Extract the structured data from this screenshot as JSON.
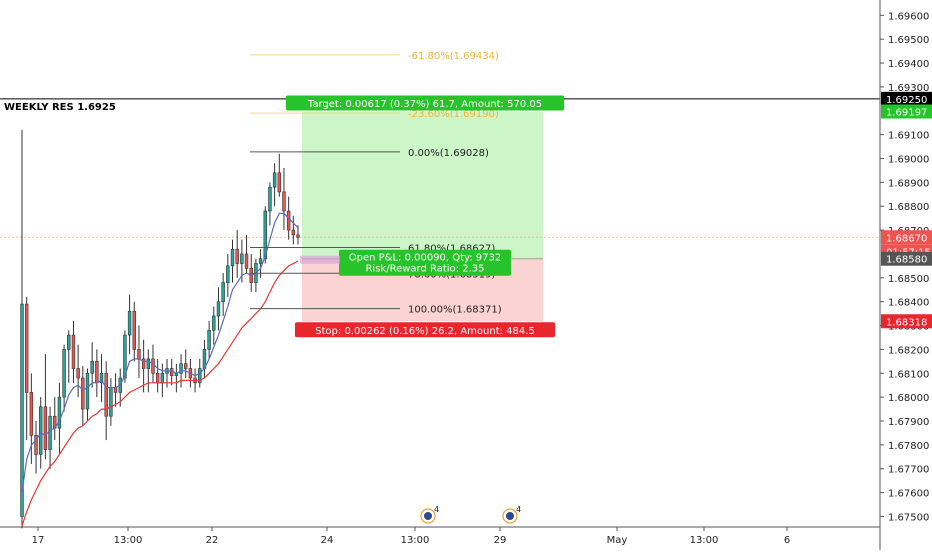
{
  "chart_data": {
    "type": "candlestick",
    "symbol_hint": "price chart with long position tool",
    "y_axis": {
      "ticks": [
        "1.69600",
        "1.69500",
        "1.69400",
        "1.69300",
        "1.69100",
        "1.69000",
        "1.68900",
        "1.68800",
        "1.68700",
        "1.68500",
        "1.68400",
        "1.68300",
        "1.68200",
        "1.68100",
        "1.68000",
        "1.67900",
        "1.67800",
        "1.67700",
        "1.67600",
        "1.67500"
      ],
      "ylim": [
        1.6746,
        1.6966
      ]
    },
    "x_axis": {
      "ticks": [
        "17",
        "13:00",
        "22",
        "24",
        "13:00",
        "29",
        "May",
        "13:00",
        "6"
      ]
    },
    "price_labels": {
      "resistance": "1.69250",
      "target": "1.69197",
      "last_price": "1.68670",
      "countdown": "01:57:15",
      "entry": "1.68580",
      "stop": "1.68318"
    },
    "horizontal_line": {
      "label": "WEEKLY RES 1.6925",
      "price": 1.6925
    },
    "fib_levels": [
      {
        "label": "-61.80%(1.69434)",
        "price": 1.69434
      },
      {
        "label": "-23.60%(1.69190)",
        "price": 1.6919
      },
      {
        "label": "0.00%(1.69028)",
        "price": 1.69028
      },
      {
        "label": "61.80%(1.68627)",
        "price": 1.68627
      },
      {
        "label": "78.60%(1.68519)",
        "price": 1.68519
      },
      {
        "label": "100.00%(1.68371)",
        "price": 1.68371
      }
    ],
    "position": {
      "target_text": "Target: 0.00617 (0.37%) 61.7, Amount: 570.05",
      "pnl_text": "Open P&L: 0.00090, Qty: 9732",
      "rr_text": "Risk/Reward Ratio: 2.35",
      "stop_text": "Stop: 0.00262 (0.16%) 26.2, Amount: 484.5",
      "entry": 1.6858,
      "target": 1.69197,
      "stop": 1.68318
    },
    "event_markers": [
      {
        "label": "4"
      },
      {
        "label": "4"
      }
    ],
    "candles": [
      [
        1.675,
        1.6912,
        1.6745,
        1.6839
      ],
      [
        1.6839,
        1.6842,
        1.6782,
        1.6802
      ],
      [
        1.6802,
        1.681,
        1.6772,
        1.6784
      ],
      [
        1.6784,
        1.679,
        1.6768,
        1.6776
      ],
      [
        1.6776,
        1.68,
        1.677,
        1.6796
      ],
      [
        1.6796,
        1.6818,
        1.6774,
        1.6778
      ],
      [
        1.6778,
        1.6796,
        1.677,
        1.6792
      ],
      [
        1.6792,
        1.68,
        1.6782,
        1.6787
      ],
      [
        1.6787,
        1.6806,
        1.6776,
        1.68
      ],
      [
        1.68,
        1.6822,
        1.6794,
        1.682
      ],
      [
        1.682,
        1.6828,
        1.6806,
        1.6826
      ],
      [
        1.6826,
        1.6832,
        1.6806,
        1.6812
      ],
      [
        1.6812,
        1.6822,
        1.68,
        1.6808
      ],
      [
        1.6808,
        1.6813,
        1.6788,
        1.6795
      ],
      [
        1.6795,
        1.6812,
        1.679,
        1.681
      ],
      [
        1.681,
        1.6823,
        1.6804,
        1.6815
      ],
      [
        1.6815,
        1.682,
        1.68,
        1.6806
      ],
      [
        1.6806,
        1.6818,
        1.6798,
        1.681
      ],
      [
        1.681,
        1.6815,
        1.6782,
        1.6792
      ],
      [
        1.6792,
        1.6808,
        1.6788,
        1.6804
      ],
      [
        1.6804,
        1.681,
        1.6796,
        1.6802
      ],
      [
        1.6802,
        1.6812,
        1.6796,
        1.6808
      ],
      [
        1.6808,
        1.6828,
        1.6806,
        1.6826
      ],
      [
        1.6826,
        1.6843,
        1.6818,
        1.6836
      ],
      [
        1.6836,
        1.684,
        1.6815,
        1.682
      ],
      [
        1.682,
        1.683,
        1.6808,
        1.6816
      ],
      [
        1.6816,
        1.6824,
        1.6802,
        1.6812
      ],
      [
        1.6812,
        1.682,
        1.6802,
        1.6816
      ],
      [
        1.6816,
        1.6822,
        1.6806,
        1.681
      ],
      [
        1.681,
        1.6816,
        1.6802,
        1.6806
      ],
      [
        1.6806,
        1.6814,
        1.68,
        1.681
      ],
      [
        1.681,
        1.6816,
        1.6804,
        1.6812
      ],
      [
        1.6812,
        1.6816,
        1.6805,
        1.6809
      ],
      [
        1.6809,
        1.6814,
        1.6802,
        1.681
      ],
      [
        1.681,
        1.6818,
        1.6804,
        1.6814
      ],
      [
        1.6814,
        1.682,
        1.6808,
        1.6812
      ],
      [
        1.6812,
        1.6816,
        1.6804,
        1.6808
      ],
      [
        1.6808,
        1.6812,
        1.6802,
        1.6806
      ],
      [
        1.6806,
        1.6816,
        1.6804,
        1.6812
      ],
      [
        1.6812,
        1.6824,
        1.6808,
        1.682
      ],
      [
        1.682,
        1.6832,
        1.6816,
        1.6828
      ],
      [
        1.6828,
        1.6838,
        1.6822,
        1.6834
      ],
      [
        1.6834,
        1.6846,
        1.6828,
        1.684
      ],
      [
        1.684,
        1.6852,
        1.6834,
        1.6848
      ],
      [
        1.6848,
        1.686,
        1.6842,
        1.6855
      ],
      [
        1.6855,
        1.6866,
        1.6848,
        1.6862
      ],
      [
        1.6862,
        1.687,
        1.685,
        1.6856
      ],
      [
        1.6856,
        1.6866,
        1.6848,
        1.686
      ],
      [
        1.686,
        1.6868,
        1.6852,
        1.6854
      ],
      [
        1.6854,
        1.686,
        1.6844,
        1.6848
      ],
      [
        1.6848,
        1.6858,
        1.6844,
        1.6856
      ],
      [
        1.6856,
        1.6862,
        1.685,
        1.6858
      ],
      [
        1.6858,
        1.688,
        1.6856,
        1.6878
      ],
      [
        1.6878,
        1.689,
        1.6872,
        1.6888
      ],
      [
        1.6888,
        1.6898,
        1.688,
        1.6894
      ],
      [
        1.6894,
        1.6902,
        1.6884,
        1.6886
      ],
      [
        1.6886,
        1.6896,
        1.687,
        1.6878
      ],
      [
        1.6878,
        1.6884,
        1.6866,
        1.687
      ],
      [
        1.687,
        1.6876,
        1.6864,
        1.6868
      ],
      [
        1.6868,
        1.6872,
        1.6864,
        1.6867
      ]
    ],
    "ma_fast": [
      1.676,
      1.6774,
      1.678,
      1.6782,
      1.6785,
      1.6784,
      1.6786,
      1.6787,
      1.679,
      1.6795,
      1.6801,
      1.6804,
      1.6805,
      1.6803,
      1.6804,
      1.6806,
      1.6806,
      1.6807,
      1.6804,
      1.6804,
      1.6804,
      1.6805,
      1.6809,
      1.6815,
      1.6816,
      1.6816,
      1.6815,
      1.6815,
      1.6814,
      1.6812,
      1.6811,
      1.6811,
      1.6811,
      1.681,
      1.6811,
      1.6811,
      1.681,
      1.6809,
      1.681,
      1.6812,
      1.6816,
      1.6821,
      1.6826,
      1.6832,
      1.6838,
      1.6845,
      1.6848,
      1.6851,
      1.6852,
      1.6851,
      1.6852,
      1.6854,
      1.6859,
      1.6866,
      1.6873,
      1.6877,
      1.6877,
      1.6875,
      1.6873,
      1.6871
    ],
    "ma_slow": [
      1.6746,
      1.6752,
      1.6757,
      1.6761,
      1.6765,
      1.6768,
      1.6771,
      1.6773,
      1.6776,
      1.6779,
      1.6782,
      1.6785,
      1.6787,
      1.6788,
      1.679,
      1.6792,
      1.6793,
      1.6795,
      1.6795,
      1.6796,
      1.6797,
      1.6798,
      1.68,
      1.6802,
      1.6803,
      1.6804,
      1.6805,
      1.6806,
      1.6806,
      1.6806,
      1.6806,
      1.6806,
      1.6806,
      1.6806,
      1.6807,
      1.6807,
      1.6807,
      1.6807,
      1.6807,
      1.6808,
      1.681,
      1.6812,
      1.6814,
      1.6817,
      1.682,
      1.6823,
      1.6826,
      1.6829,
      1.6831,
      1.6833,
      1.6835,
      1.6837,
      1.684,
      1.6844,
      1.6848,
      1.6851,
      1.6853,
      1.6855,
      1.6856,
      1.6857
    ],
    "colors": {
      "up": "#26a69a",
      "down": "#ef5350",
      "ma_fast": "#5b6bc0",
      "ma_slow": "#e53935",
      "profit_zone": "#ccf5c8",
      "loss_zone": "#fbd3d3",
      "target_label_bg": "#26c42a",
      "stop_label_bg": "#e8262e"
    }
  }
}
